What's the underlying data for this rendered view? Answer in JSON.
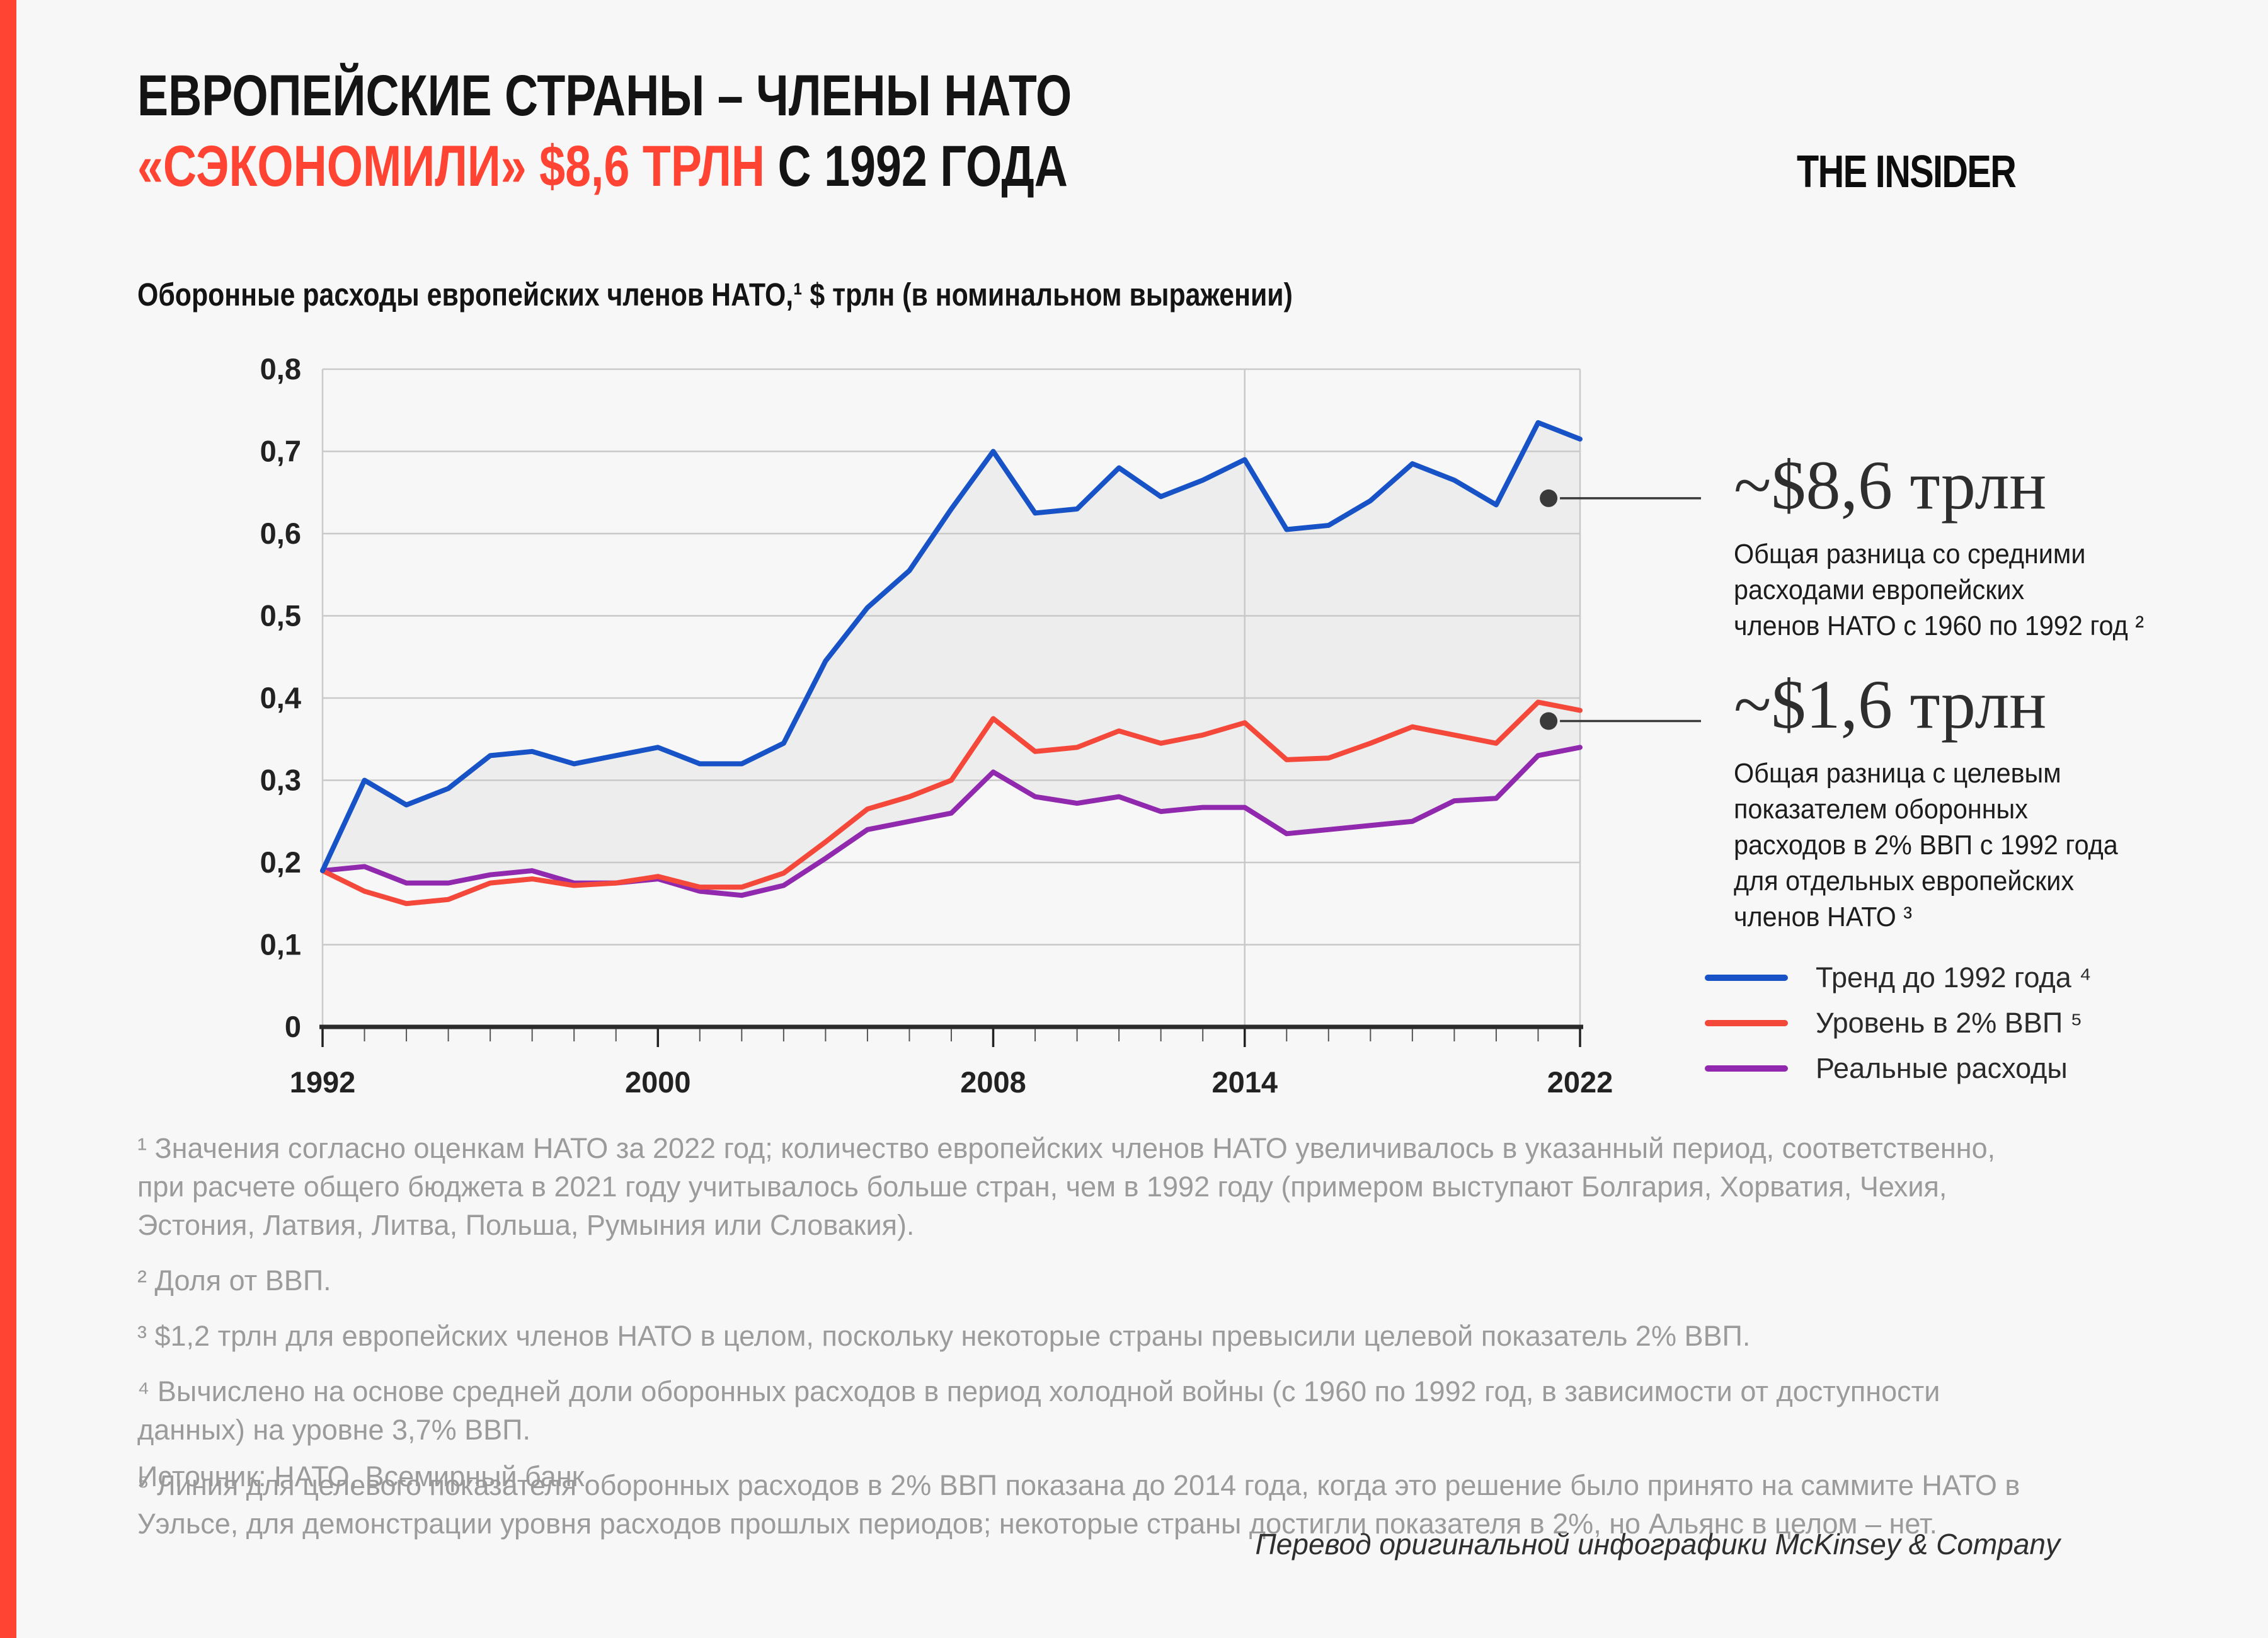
{
  "page": {
    "background": "#f7f7f7",
    "accent_color": "#ff4433"
  },
  "header": {
    "title_line1": "ЕВРОПЕЙСКИЕ СТРАНЫ – ЧЛЕНЫ НАТО",
    "title_line2_red": "«СЭКОНОМИЛИ» $8,6 ТРЛН",
    "title_line2_black": " С 1992 ГОДА",
    "logo": "THE INSIDER",
    "subtitle": "Оборонные расходы европейских членов НАТО,¹ $ трлн (в номинальном выражении)"
  },
  "chart_data": {
    "type": "line",
    "x_start": 1992,
    "x_end": 2022,
    "x_tick_labels": [
      1992,
      2000,
      2008,
      2014,
      2022
    ],
    "ylim": [
      0,
      0.8
    ],
    "y_tick_labels": [
      "0",
      "0,1",
      "0,2",
      "0,3",
      "0,4",
      "0,5",
      "0,6",
      "0,7",
      "0,8"
    ],
    "grid_color": "#c9c9c9",
    "axis_color": "#2b2b2b",
    "vline_year": 2014,
    "fill_between_color": "#ededed",
    "series": [
      {
        "name": "Тренд до 1992 года ⁴",
        "color": "#1753c6",
        "values": [
          0.19,
          0.3,
          0.27,
          0.29,
          0.33,
          0.335,
          0.32,
          0.33,
          0.34,
          0.32,
          0.32,
          0.345,
          0.445,
          0.51,
          0.555,
          0.63,
          0.7,
          0.625,
          0.63,
          0.68,
          0.645,
          0.665,
          0.69,
          0.605,
          0.61,
          0.64,
          0.685,
          0.665,
          0.635,
          0.735,
          0.715
        ]
      },
      {
        "name": "Уровень в 2% ВВП ⁵",
        "color": "#f4483a",
        "values": [
          0.19,
          0.165,
          0.15,
          0.155,
          0.175,
          0.18,
          0.172,
          0.175,
          0.183,
          0.17,
          0.17,
          0.187,
          0.225,
          0.265,
          0.28,
          0.3,
          0.375,
          0.335,
          0.34,
          0.36,
          0.345,
          0.355,
          0.37,
          0.325,
          0.327,
          0.345,
          0.365,
          0.355,
          0.345,
          0.395,
          0.385
        ]
      },
      {
        "name": "Реальные расходы",
        "color": "#9129ae",
        "values": [
          0.19,
          0.195,
          0.175,
          0.175,
          0.185,
          0.19,
          0.175,
          0.175,
          0.18,
          0.165,
          0.16,
          0.172,
          0.205,
          0.24,
          0.25,
          0.26,
          0.31,
          0.28,
          0.272,
          0.28,
          0.262,
          0.267,
          0.267,
          0.235,
          0.24,
          0.245,
          0.25,
          0.275,
          0.278,
          0.33,
          0.34
        ]
      }
    ]
  },
  "annotations": [
    {
      "value": "~$8,6 трлн",
      "dot_year": 2021.25,
      "dot_value": 0.643,
      "lines": [
        "Общая разница со средними",
        "расходами европейских",
        "членов НАТО с 1960 по 1992 год ²"
      ]
    },
    {
      "value": "~$1,6 трлн",
      "dot_year": 2021.25,
      "dot_value": 0.372,
      "lines": [
        "Общая разница с целевым",
        "показателем оборонных",
        "расходов в 2% ВВП с 1992 года",
        "для отдельных европейских",
        "членов НАТО ³"
      ]
    }
  ],
  "footnotes": [
    "¹ Значения согласно оценкам НАТО за 2022 год; количество европейских членов НАТО увеличивалось в указанный период, соответственно, при расчете общего бюджета в 2021 году учитывалось больше стран, чем в 1992 году (примером выступают Болгария, Хорватия, Чехия, Эстония, Латвия, Литва, Польша, Румыния или Словакия).",
    "² Доля от ВВП.",
    "³ $1,2 трлн для европейских членов НАТО в целом, поскольку некоторые страны превысили целевой показатель 2% ВВП.",
    "⁴ Вычислено на основе средней доли оборонных расходов в период холодной войны (с 1960 по 1992 год, в зависимости от доступности данных) на уровне 3,7% ВВП.",
    "⁵ Линия для целевого показателя оборонных расходов в 2% ВВП показана до 2014 года, когда это решение было принято на саммите НАТО в Уэльсе, для демонстрации уровня расходов прошлых периодов; некоторые страны достигли показателя в 2%, но Альянс в целом – нет."
  ],
  "source": "Источник: НАТО, Всемирный банк",
  "credit": "Перевод оригинальной инфографики McKinsey & Company"
}
